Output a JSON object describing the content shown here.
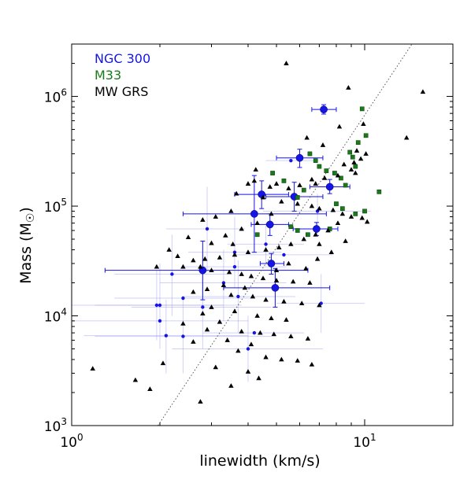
{
  "chart_data": {
    "type": "scatter",
    "xscale": "log",
    "yscale": "log",
    "xlim": [
      1,
      20
    ],
    "ylim": [
      1000,
      3000000
    ],
    "xlabel_main": "linewidth (km/s)",
    "ylabel_main": "Mass (M",
    "ylabel_sub": "☉",
    "ylabel_close": ")",
    "x_ticks": [
      {
        "value": 1,
        "base": "10",
        "exp": "0"
      },
      {
        "value": 10,
        "base": "10",
        "exp": "1"
      }
    ],
    "y_ticks": [
      {
        "value": 1000,
        "base": "10",
        "exp": "3"
      },
      {
        "value": 10000,
        "base": "10",
        "exp": "4"
      },
      {
        "value": 100000,
        "base": "10",
        "exp": "5"
      },
      {
        "value": 1000000,
        "base": "10",
        "exp": "6"
      }
    ],
    "legend": [
      {
        "label": "NGC 300",
        "color": "#1515e6"
      },
      {
        "label": "M33",
        "color": "#1a7a1a"
      },
      {
        "label": "MW GRS",
        "color": "#000000"
      }
    ],
    "legend_placement": "top-left",
    "reference_line": {
      "style": "dotted",
      "x": [
        1.97,
        14.5
      ],
      "y": [
        1000,
        3000000
      ]
    },
    "series": [
      {
        "name": "NGC 300",
        "color": "#1515e6",
        "big_points": [
          {
            "x": 7.25,
            "y": 760000,
            "xerr": [
              6.6,
              8.0
            ],
            "yerr": [
              690000,
              840000
            ]
          },
          {
            "x": 6.0,
            "y": 275000,
            "xerr": [
              5.0,
              7.2
            ],
            "yerr": [
              225000,
              330000
            ]
          },
          {
            "x": 7.6,
            "y": 150000,
            "xerr": [
              6.5,
              8.9
            ],
            "yerr": [
              130000,
              175000
            ]
          },
          {
            "x": 4.45,
            "y": 128000,
            "xerr": [
              3.6,
              5.5
            ],
            "yerr": [
              95000,
              170000
            ]
          },
          {
            "x": 5.75,
            "y": 122000,
            "xerr": [
              4.6,
              7.2
            ],
            "yerr": [
              90000,
              165000
            ]
          },
          {
            "x": 4.2,
            "y": 85000,
            "xerr": [
              2.4,
              7.4
            ],
            "yerr": [
              38000,
              190000
            ]
          },
          {
            "x": 4.75,
            "y": 68000,
            "xerr": [
              4.1,
              5.5
            ],
            "yerr": [
              54000,
              85000
            ]
          },
          {
            "x": 6.85,
            "y": 62000,
            "xerr": [
              5.7,
              8.1
            ],
            "yerr": [
              54000,
              71000
            ]
          },
          {
            "x": 4.8,
            "y": 30000,
            "xerr": [
              4.4,
              5.3
            ],
            "yerr": [
              24000,
              37000
            ]
          },
          {
            "x": 2.8,
            "y": 26000,
            "xerr": [
              1.3,
              6.4
            ],
            "yerr": [
              14000,
              48000
            ]
          },
          {
            "x": 4.95,
            "y": 18000,
            "xerr": [
              3.3,
              7.6
            ],
            "yerr": [
              12000,
              27000
            ]
          }
        ],
        "small_points": [
          {
            "x": 6.9,
            "y": 90000,
            "xerr": [
              4.5,
              10.5
            ],
            "yerr": [
              60000,
              130000
            ]
          },
          {
            "x": 5.6,
            "y": 260000,
            "xerr": [
              4.6,
              6.8
            ]
          },
          {
            "x": 2.9,
            "y": 62000,
            "xerr": [
              2.1,
              3.9
            ],
            "yerr": [
              25000,
              150000
            ]
          },
          {
            "x": 3.6,
            "y": 38000,
            "xerr": [
              2.5,
              5.2
            ],
            "yerr": [
              18000,
              80000
            ]
          },
          {
            "x": 2.2,
            "y": 24000,
            "xerr": [
              1.4,
              3.4
            ],
            "yerr": [
              10000,
              55000
            ]
          },
          {
            "x": 1.95,
            "y": 12500,
            "xerr": [
              1.0,
              3.8
            ],
            "yerr": [
              6000,
              26000
            ]
          },
          {
            "x": 2.0,
            "y": 12500,
            "xerr": [
              1.2,
              3.3
            ],
            "yerr": [
              5000,
              30000
            ]
          },
          {
            "x": 2.4,
            "y": 6500,
            "xerr": [
              1.2,
              4.8
            ],
            "yerr": [
              3000,
              14000
            ]
          },
          {
            "x": 2.1,
            "y": 6600,
            "xerr": [
              1.1,
              4.0
            ],
            "yerr": [
              3000,
              14000
            ]
          },
          {
            "x": 2.8,
            "y": 12000,
            "xerr": [
              1.6,
              4.8
            ],
            "yerr": [
              5000,
              28000
            ]
          },
          {
            "x": 3.3,
            "y": 20000,
            "xerr": [
              2.0,
              5.4
            ],
            "yerr": [
              9000,
              40000
            ]
          },
          {
            "x": 4.0,
            "y": 5000,
            "xerr": [
              2.2,
              7.2
            ],
            "yerr": [
              2500,
              10000
            ]
          },
          {
            "x": 4.2,
            "y": 7000,
            "xerr": [
              2.8,
              6.2
            ]
          },
          {
            "x": 4.6,
            "y": 45000,
            "xerr": [
              3.4,
              6.2
            ],
            "yerr": [
              30000,
              70000
            ]
          },
          {
            "x": 3.6,
            "y": 28000,
            "xerr": [
              2.4,
              5.4
            ]
          },
          {
            "x": 3.7,
            "y": 15000,
            "xerr": [
              2.4,
              5.8
            ],
            "yerr": [
              7000,
              32000
            ]
          },
          {
            "x": 7.1,
            "y": 13000,
            "xerr": [
              5.0,
              10.0
            ],
            "yerr": [
              7000,
              24000
            ]
          },
          {
            "x": 2.0,
            "y": 9000,
            "xerr": [
              1.0,
              4.0
            ]
          },
          {
            "x": 5.3,
            "y": 36000,
            "xerr": [
              3.6,
              7.8
            ]
          },
          {
            "x": 2.4,
            "y": 14500,
            "xerr": [
              1.4,
              4.1
            ]
          }
        ]
      },
      {
        "name": "M33",
        "color": "#1a7a1a",
        "marker": "square",
        "points": [
          {
            "x": 9.8,
            "y": 770000
          },
          {
            "x": 10.1,
            "y": 440000
          },
          {
            "x": 9.5,
            "y": 380000
          },
          {
            "x": 8.9,
            "y": 310000
          },
          {
            "x": 9.1,
            "y": 280000
          },
          {
            "x": 9.3,
            "y": 230000
          },
          {
            "x": 6.5,
            "y": 300000
          },
          {
            "x": 6.8,
            "y": 260000
          },
          {
            "x": 7.0,
            "y": 230000
          },
          {
            "x": 7.4,
            "y": 210000
          },
          {
            "x": 7.9,
            "y": 200000
          },
          {
            "x": 8.3,
            "y": 180000
          },
          {
            "x": 8.6,
            "y": 155000
          },
          {
            "x": 11.2,
            "y": 135000
          },
          {
            "x": 6.2,
            "y": 140000
          },
          {
            "x": 5.9,
            "y": 120000
          },
          {
            "x": 8.0,
            "y": 105000
          },
          {
            "x": 8.4,
            "y": 95000
          },
          {
            "x": 9.3,
            "y": 85000
          },
          {
            "x": 10.0,
            "y": 90000
          },
          {
            "x": 4.85,
            "y": 200000
          },
          {
            "x": 5.3,
            "y": 170000
          },
          {
            "x": 5.6,
            "y": 65000
          },
          {
            "x": 5.9,
            "y": 60000
          },
          {
            "x": 6.4,
            "y": 55000
          },
          {
            "x": 4.3,
            "y": 55000
          },
          {
            "x": 7.6,
            "y": 62000
          }
        ]
      },
      {
        "name": "MW GRS",
        "color": "#000000",
        "marker": "triangle",
        "points": [
          {
            "x": 5.4,
            "y": 2000000
          },
          {
            "x": 15.8,
            "y": 1100000
          },
          {
            "x": 8.8,
            "y": 1200000
          },
          {
            "x": 13.9,
            "y": 420000
          },
          {
            "x": 9.9,
            "y": 560000
          },
          {
            "x": 8.2,
            "y": 530000
          },
          {
            "x": 6.35,
            "y": 420000
          },
          {
            "x": 7.2,
            "y": 360000
          },
          {
            "x": 9.4,
            "y": 320000
          },
          {
            "x": 10.1,
            "y": 300000
          },
          {
            "x": 9.7,
            "y": 270000
          },
          {
            "x": 9.2,
            "y": 250000
          },
          {
            "x": 8.5,
            "y": 240000
          },
          {
            "x": 9.0,
            "y": 215000
          },
          {
            "x": 9.3,
            "y": 200000
          },
          {
            "x": 8.1,
            "y": 190000
          },
          {
            "x": 7.3,
            "y": 180000
          },
          {
            "x": 6.6,
            "y": 175000
          },
          {
            "x": 6.8,
            "y": 160000
          },
          {
            "x": 6.0,
            "y": 155000
          },
          {
            "x": 5.5,
            "y": 145000
          },
          {
            "x": 5.0,
            "y": 160000
          },
          {
            "x": 4.75,
            "y": 150000
          },
          {
            "x": 4.2,
            "y": 170000
          },
          {
            "x": 4.0,
            "y": 160000
          },
          {
            "x": 3.65,
            "y": 130000
          },
          {
            "x": 4.25,
            "y": 215000
          },
          {
            "x": 4.5,
            "y": 120000
          },
          {
            "x": 5.2,
            "y": 110000
          },
          {
            "x": 5.9,
            "y": 105000
          },
          {
            "x": 6.6,
            "y": 100000
          },
          {
            "x": 7.0,
            "y": 95000
          },
          {
            "x": 7.8,
            "y": 92000
          },
          {
            "x": 8.4,
            "y": 85000
          },
          {
            "x": 9.0,
            "y": 80000
          },
          {
            "x": 9.8,
            "y": 78000
          },
          {
            "x": 10.2,
            "y": 72000
          },
          {
            "x": 8.1,
            "y": 70000
          },
          {
            "x": 7.5,
            "y": 60000
          },
          {
            "x": 6.8,
            "y": 55000
          },
          {
            "x": 6.2,
            "y": 50000
          },
          {
            "x": 5.6,
            "y": 45000
          },
          {
            "x": 5.1,
            "y": 42000
          },
          {
            "x": 4.6,
            "y": 40000
          },
          {
            "x": 4.0,
            "y": 38000
          },
          {
            "x": 3.6,
            "y": 36000
          },
          {
            "x": 3.2,
            "y": 34000
          },
          {
            "x": 2.85,
            "y": 33000
          },
          {
            "x": 2.6,
            "y": 32000
          },
          {
            "x": 2.3,
            "y": 35000
          },
          {
            "x": 3.0,
            "y": 46000
          },
          {
            "x": 3.35,
            "y": 54000
          },
          {
            "x": 3.8,
            "y": 62000
          },
          {
            "x": 4.3,
            "y": 70000
          },
          {
            "x": 3.1,
            "y": 80000
          },
          {
            "x": 2.8,
            "y": 75000
          },
          {
            "x": 3.5,
            "y": 90000
          },
          {
            "x": 2.5,
            "y": 52000
          },
          {
            "x": 2.15,
            "y": 40000
          },
          {
            "x": 1.95,
            "y": 28000
          },
          {
            "x": 2.4,
            "y": 28000
          },
          {
            "x": 2.75,
            "y": 28000
          },
          {
            "x": 3.0,
            "y": 26000
          },
          {
            "x": 3.45,
            "y": 25000
          },
          {
            "x": 3.8,
            "y": 24000
          },
          {
            "x": 4.1,
            "y": 23000
          },
          {
            "x": 4.5,
            "y": 22000
          },
          {
            "x": 5.0,
            "y": 21000
          },
          {
            "x": 5.7,
            "y": 20500
          },
          {
            "x": 6.5,
            "y": 20000
          },
          {
            "x": 3.3,
            "y": 19000
          },
          {
            "x": 3.9,
            "y": 18000
          },
          {
            "x": 2.9,
            "y": 17500
          },
          {
            "x": 2.6,
            "y": 16500
          },
          {
            "x": 3.5,
            "y": 15500
          },
          {
            "x": 4.15,
            "y": 15000
          },
          {
            "x": 4.6,
            "y": 14000
          },
          {
            "x": 5.3,
            "y": 13500
          },
          {
            "x": 6.1,
            "y": 13000
          },
          {
            "x": 7.0,
            "y": 12500
          },
          {
            "x": 3.0,
            "y": 12000
          },
          {
            "x": 3.6,
            "y": 11000
          },
          {
            "x": 2.8,
            "y": 10500
          },
          {
            "x": 4.3,
            "y": 10000
          },
          {
            "x": 4.8,
            "y": 9500
          },
          {
            "x": 5.4,
            "y": 9200
          },
          {
            "x": 3.2,
            "y": 8800
          },
          {
            "x": 2.4,
            "y": 8500
          },
          {
            "x": 2.9,
            "y": 7500
          },
          {
            "x": 3.8,
            "y": 7200
          },
          {
            "x": 4.4,
            "y": 7000
          },
          {
            "x": 4.9,
            "y": 6800
          },
          {
            "x": 5.6,
            "y": 6500
          },
          {
            "x": 6.4,
            "y": 6200
          },
          {
            "x": 3.4,
            "y": 6000
          },
          {
            "x": 2.6,
            "y": 5800
          },
          {
            "x": 4.1,
            "y": 5500
          },
          {
            "x": 3.7,
            "y": 4800
          },
          {
            "x": 4.6,
            "y": 4200
          },
          {
            "x": 5.2,
            "y": 4000
          },
          {
            "x": 5.9,
            "y": 3900
          },
          {
            "x": 6.6,
            "y": 3600
          },
          {
            "x": 3.1,
            "y": 3400
          },
          {
            "x": 4.0,
            "y": 3100
          },
          {
            "x": 1.18,
            "y": 3300
          },
          {
            "x": 1.65,
            "y": 2600
          },
          {
            "x": 2.05,
            "y": 3700
          },
          {
            "x": 2.75,
            "y": 1650
          },
          {
            "x": 3.5,
            "y": 2300
          },
          {
            "x": 4.35,
            "y": 2700
          },
          {
            "x": 1.85,
            "y": 2150
          },
          {
            "x": 7.0,
            "y": 45000
          },
          {
            "x": 7.7,
            "y": 38000
          },
          {
            "x": 8.6,
            "y": 48000
          },
          {
            "x": 6.9,
            "y": 33000
          },
          {
            "x": 5.5,
            "y": 30000
          },
          {
            "x": 6.3,
            "y": 27000
          },
          {
            "x": 5.0,
            "y": 26000
          },
          {
            "x": 3.55,
            "y": 45000
          },
          {
            "x": 4.8,
            "y": 85000
          }
        ]
      }
    ]
  }
}
